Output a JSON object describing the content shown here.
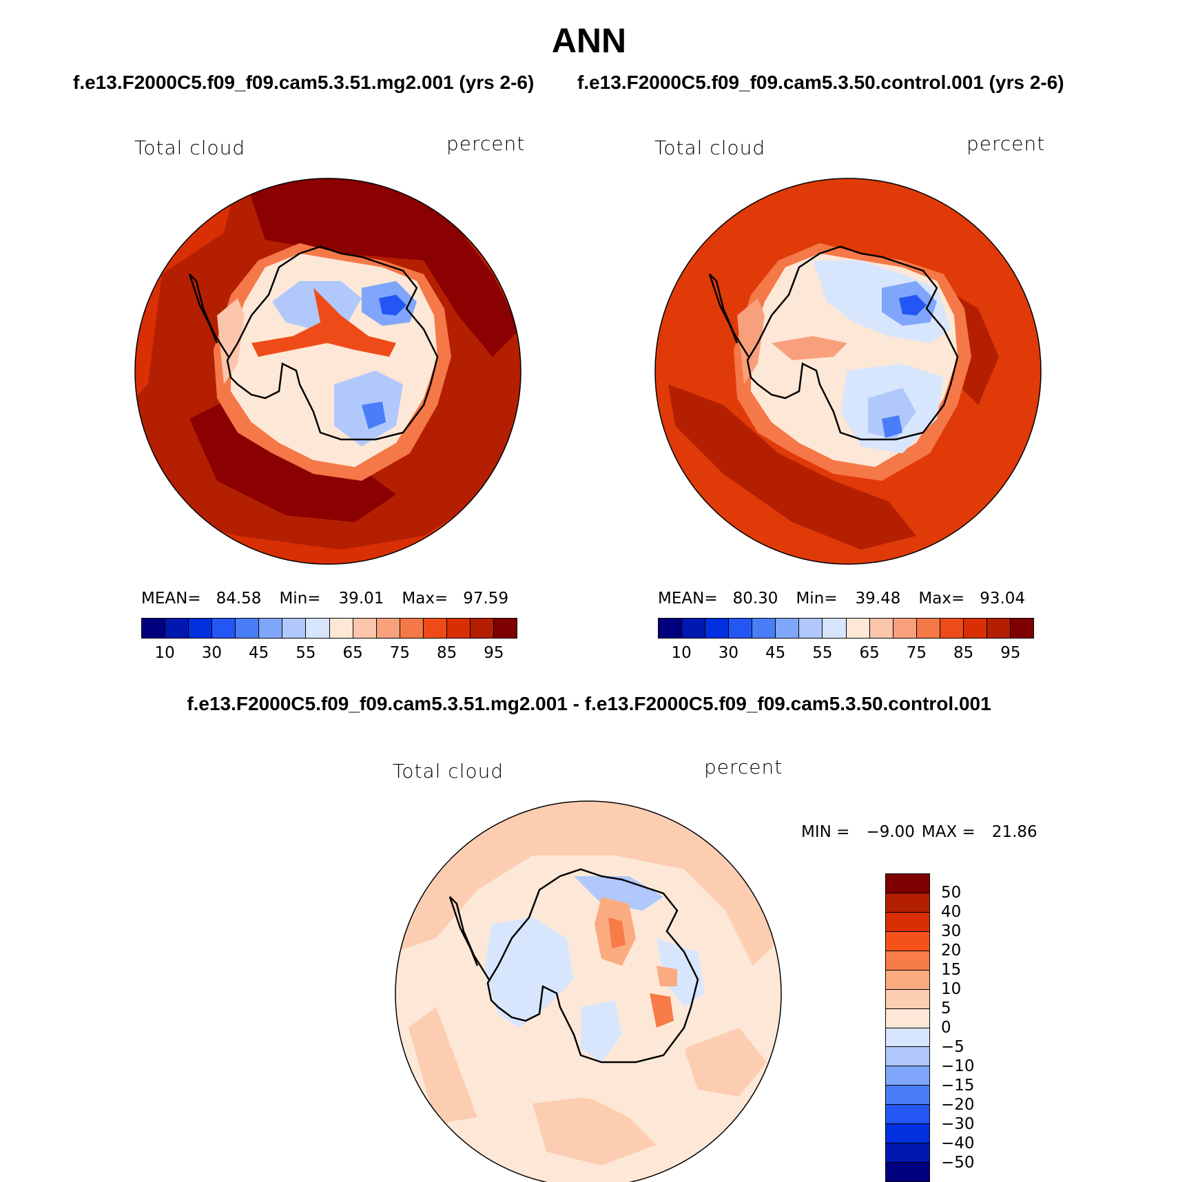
{
  "title": "ANN",
  "case_left": "f.e13.F2000C5.f09_f09.cam5.3.51.mg2.001 (yrs 2-6)",
  "case_right": "f.e13.F2000C5.f09_f09.cam5.3.50.control.001 (yrs 2-6)",
  "diff_title": "f.e13.F2000C5.f09_f09.cam5.3.51.mg2.001 - f.e13.F2000C5.f09_f09.cam5.3.50.control.001",
  "panels": {
    "left": {
      "variable": "Total cloud",
      "units": "percent",
      "mean_label": "MEAN=",
      "mean": "84.58",
      "min_label": "Min=",
      "min": "39.01",
      "max_label": "Max=",
      "max": "97.59"
    },
    "right": {
      "variable": "Total cloud",
      "units": "percent",
      "mean_label": "MEAN=",
      "mean": "80.30",
      "min_label": "Min=",
      "min": "39.48",
      "max_label": "Max=",
      "max": "93.04"
    },
    "diff": {
      "variable": "Total cloud",
      "units": "percent",
      "min_label": "MIN =",
      "min": "−9.00",
      "max_label": "MAX =",
      "max": "21.86"
    }
  },
  "colorbar_abs": {
    "colors": [
      "#00007f",
      "#0018b0",
      "#0030e0",
      "#2455f5",
      "#4a7ef8",
      "#7fa6fa",
      "#b0c8fc",
      "#d8e6fd",
      "#fde7d6",
      "#fbc6ab",
      "#f8a07c",
      "#f57848",
      "#ef4b18",
      "#d92f05",
      "#b41f02",
      "#7f0000"
    ],
    "tick_labels": [
      "10",
      "30",
      "45",
      "55",
      "65",
      "75",
      "85",
      "95"
    ]
  },
  "colorbar_diff": {
    "colors": [
      "#7f0000",
      "#b41f02",
      "#d92f05",
      "#f5521a",
      "#f87c48",
      "#fbab80",
      "#fdcdb2",
      "#fde8d8",
      "#d8e6fd",
      "#b0c8fc",
      "#7fa6fa",
      "#4a7ef8",
      "#2455f5",
      "#0030e0",
      "#0018b0",
      "#00007f"
    ],
    "tick_labels": [
      "50",
      "40",
      "30",
      "20",
      "15",
      "10",
      "5",
      "0",
      "−5",
      "−10",
      "−15",
      "−20",
      "−30",
      "−40",
      "−50"
    ]
  },
  "map_colors": {
    "ocean_high": "#b41f02",
    "ocean_darkest": "#8b0000",
    "ocean_mid": "#d92f05",
    "ocean_right": "#e03a08",
    "coast_band": "#f57848",
    "interior_light": "#fde7d6",
    "interior_blue": "#d8e6fd",
    "interior_blue2": "#b0c8fc",
    "interior_blue3": "#4a7ef8",
    "diff_ocean": "#fde8d8",
    "diff_ocean2": "#fdcdb2",
    "diff_land_blue": "#d8e6fd",
    "diff_land_orange": "#f87c48"
  }
}
